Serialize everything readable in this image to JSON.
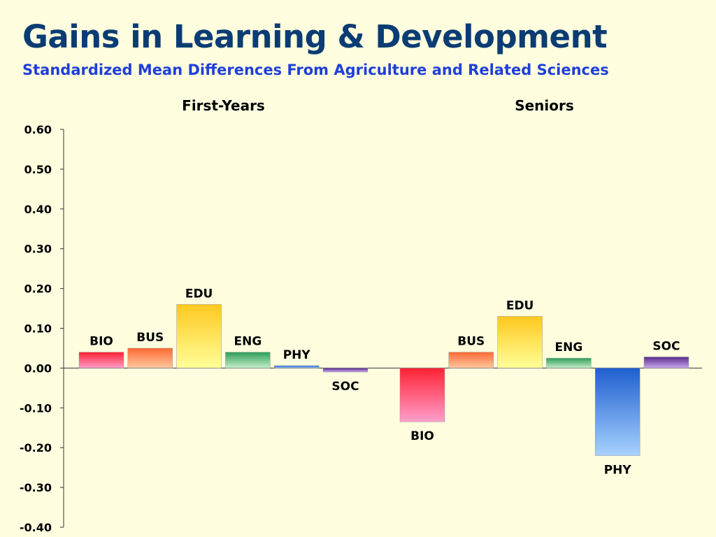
{
  "header": {
    "title": "Gains in Learning & Development",
    "subtitle": "Standardized Mean Differences From Agriculture and Related Sciences"
  },
  "chart_data": {
    "type": "bar",
    "ylim": [
      -0.4,
      0.6
    ],
    "yticks": [
      "0.60",
      "0.50",
      "0.40",
      "0.30",
      "0.20",
      "0.10",
      "0.00",
      "-0.10",
      "-0.20",
      "-0.30",
      "-0.40"
    ],
    "grid": false,
    "groups": [
      {
        "name": "First-Years",
        "categories": [
          "BIO",
          "BUS",
          "EDU",
          "ENG",
          "PHY",
          "SOC"
        ],
        "values": [
          0.04,
          0.05,
          0.16,
          0.04,
          0.006,
          -0.01
        ]
      },
      {
        "name": "Seniors",
        "categories": [
          "BIO",
          "BUS",
          "EDU",
          "ENG",
          "PHY",
          "SOC"
        ],
        "values": [
          -0.135,
          0.04,
          0.13,
          0.025,
          -0.22,
          0.028
        ]
      }
    ],
    "colors": {
      "BIO": [
        "#FF2233",
        "#FF9FCC"
      ],
      "BUS": [
        "#FF6A33",
        "#FFC8A0"
      ],
      "EDU": [
        "#FFC820",
        "#FFFF99"
      ],
      "ENG": [
        "#2E9E5A",
        "#C6EEC8"
      ],
      "PHY": [
        "#1E5FD0",
        "#A8D2FF"
      ],
      "SOC": [
        "#5A2A8A",
        "#C9A8F0"
      ]
    }
  }
}
